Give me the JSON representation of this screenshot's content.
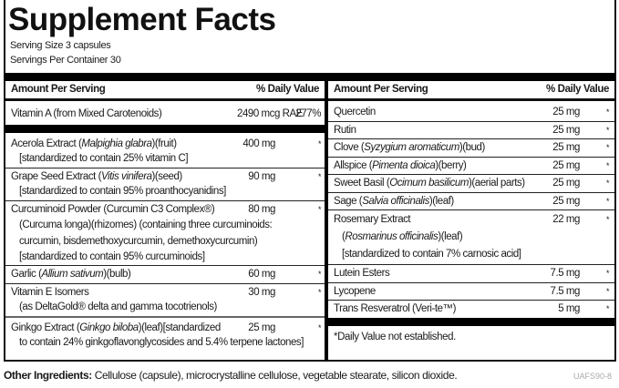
{
  "title": "Supplement Facts",
  "serving_size": "Serving Size 3 capsules",
  "servings_per_container": "Servings Per Container 30",
  "header": {
    "amount": "Amount Per Serving",
    "dv": "% Daily Value"
  },
  "left_rows": [
    {
      "name": "Vitamin A (from Mixed Carotenoids)",
      "amount": "2490 mcg RAE",
      "dv": "277%"
    },
    {
      "name": "Acerola Extract (",
      "latin": "Malpighia glabra",
      "rest": ")(fruit)",
      "sub": [
        "[standardized to contain 25% vitamin C]"
      ],
      "amount": "400 mg",
      "dv": "*"
    },
    {
      "name": "Grape Seed Extract (",
      "latin": "Vitis vinifera",
      "rest": ")(seed)",
      "sub": [
        "[standardized to contain 95% proanthocyanidins]"
      ],
      "amount": "90 mg",
      "dv": "*"
    },
    {
      "name": "Curcuminoid Powder (Curcumin C3 Complex®)",
      "sub": [
        "(Curcuma longa)(rhizomes) (containing three curcuminoids:",
        "curcumin, bisdemethoxycurcumin, demethoxycurcumin)",
        "[standardized to contain 95% curcuminoids]"
      ],
      "amount": "80 mg",
      "dv": "*"
    },
    {
      "name": "Garlic (",
      "latin": "Allium sativum",
      "rest": ")(bulb)",
      "amount": "60 mg",
      "dv": "*"
    },
    {
      "name": "Vitamin E Isomers",
      "sub": [
        "(as DeltaGold® delta and gamma tocotrienols)"
      ],
      "amount": "30 mg",
      "dv": "*"
    },
    {
      "name": "Ginkgo Extract (",
      "latin": "Ginkgo biloba",
      "rest": ")(leaf)[standardized",
      "sub": [
        "to contain 24% ginkgoflavonglycosides and 5.4% terpene lactones]"
      ],
      "amount": "25 mg",
      "dv": "*"
    }
  ],
  "right_rows": [
    {
      "name": "Quercetin",
      "amount": "25 mg",
      "dv": "*"
    },
    {
      "name": "Rutin",
      "amount": "25 mg",
      "dv": "*"
    },
    {
      "name": "Clove (",
      "latin": "Syzygium aromaticum",
      "rest": ")(bud)",
      "amount": "25 mg",
      "dv": "*"
    },
    {
      "name": "Allspice (",
      "latin": "Pimenta dioica",
      "rest": ")(berry)",
      "amount": "25 mg",
      "dv": "*"
    },
    {
      "name": "Sweet Basil (",
      "latin": "Ocimum basilicum",
      "rest": ")(aerial parts)",
      "amount": "25 mg",
      "dv": "*"
    },
    {
      "name": "Sage (",
      "latin": "Salvia officinalis",
      "rest": ")(leaf)",
      "amount": "25 mg",
      "dv": "*"
    },
    {
      "name": "Rosemary Extract",
      "sub_latin": "Rosmarinus officinalis",
      "sub_rest": ")(leaf)",
      "sub2": "[standardized to contain 7% carnosic acid]",
      "amount": "22 mg",
      "dv": "*"
    },
    {
      "name": "Lutein Esters",
      "amount": "7.5 mg",
      "dv": "*"
    },
    {
      "name": "Lycopene",
      "amount": "7.5 mg",
      "dv": "*"
    },
    {
      "name": "Trans Resveratrol (Veri-te™)",
      "amount": "5 mg",
      "dv": "*"
    }
  ],
  "footnote": "*Daily Value not established.",
  "other_ingredients": {
    "label": "Other Ingredients:",
    "text": " Cellulose (capsule), microcrystalline cellulose, vegetable stearate, silicon dioxide."
  },
  "code": "UAFS90-8"
}
